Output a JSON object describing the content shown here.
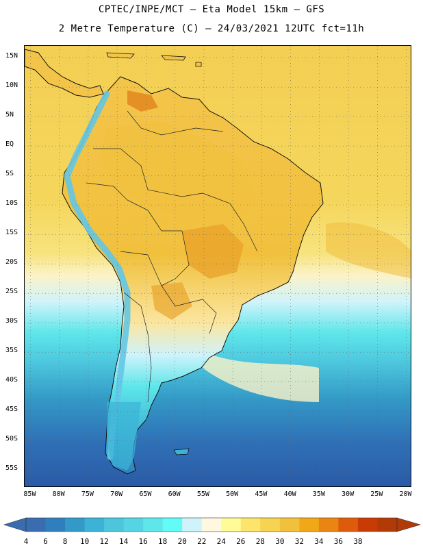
{
  "header": {
    "line1": "CPTEC/INPE/MCT –  Eta Model 15km – GFS",
    "line2": "2 Metre Temperature (C) – 24/03/2021 12UTC fct=11h"
  },
  "map": {
    "lat_labels": [
      "15N",
      "10N",
      "5N",
      "EQ",
      "5S",
      "10S",
      "15S",
      "20S",
      "25S",
      "30S",
      "35S",
      "40S",
      "45S",
      "50S",
      "55S"
    ],
    "lon_labels": [
      "85W",
      "80W",
      "75W",
      "70W",
      "65W",
      "60W",
      "55W",
      "50W",
      "45W",
      "40W",
      "35W",
      "30W",
      "25W",
      "20W"
    ],
    "lat_values": [
      15,
      10,
      5,
      0,
      -5,
      -10,
      -15,
      -20,
      -25,
      -30,
      -35,
      -40,
      -45,
      -50,
      -55
    ],
    "lon_values": [
      -85,
      -80,
      -75,
      -70,
      -65,
      -60,
      -55,
      -50,
      -45,
      -40,
      -35,
      -30,
      -25,
      -20
    ],
    "lat_range": [
      -58,
      17
    ],
    "lon_range": [
      -86,
      -19
    ],
    "grid": "dotted"
  },
  "colorbar": {
    "labels": [
      "4",
      "6",
      "8",
      "10",
      "12",
      "14",
      "16",
      "18",
      "20",
      "22",
      "24",
      "26",
      "28",
      "30",
      "32",
      "34",
      "36",
      "38"
    ],
    "colors": [
      "#3a6cb0",
      "#2f7fbe",
      "#3399c6",
      "#3cb3d6",
      "#4cc5dd",
      "#55d4e4",
      "#5ee6ea",
      "#63fbf6",
      "#cff3fb",
      "#fff7df",
      "#fffb96",
      "#fde56b",
      "#f7d352",
      "#f1c13e",
      "#f1a818",
      "#eb8512",
      "#dd5b0a",
      "#c83b04",
      "#b23a06"
    ],
    "low_arrow_color": "#3a6cb0",
    "high_arrow_color": "#b23a06"
  },
  "colors": {
    "ocean_warm": "#f3cf53",
    "ocean_warm2": "#f7dd6a",
    "ocean_mild": "#fbf3c8",
    "ocean_cool": "#5ee0e8",
    "ocean_cold": "#2f7fbe",
    "ocean_colder": "#2a5aa6",
    "land_hot": "#e8a22a",
    "land_warm": "#f3c44a",
    "land_mild": "#fbe6a0",
    "andes": "#63c7e6",
    "coast": "#111111"
  }
}
